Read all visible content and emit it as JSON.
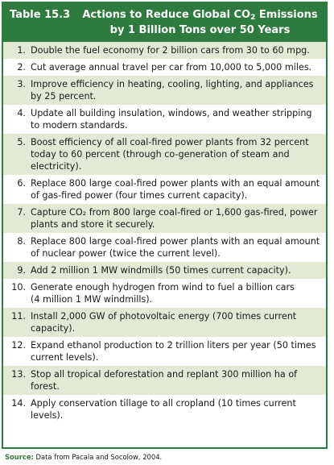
{
  "table": {
    "number": "Table 15.3",
    "title_line1": "Actions to Reduce Global CO",
    "title_sub": "2",
    "title_line1_end": " Emissions",
    "title_line2": "by 1 Billion Tons over 50 Years"
  },
  "rows": [
    {
      "num": "1.",
      "parts": [
        "Double the fuel economy for 2 billion cars from 30 to 60 mpg."
      ]
    },
    {
      "num": "2.",
      "parts": [
        "Cut average annual travel per car from 10,000 to 5,000 miles."
      ]
    },
    {
      "num": "3.",
      "parts": [
        "Improve efficiency in heating, cooling, lighting, and appliances",
        "by 25 percent."
      ]
    },
    {
      "num": "4.",
      "parts": [
        "Update all building insulation, windows, and weather stripping",
        "to modern standards."
      ]
    },
    {
      "num": "5.",
      "parts": [
        "Boost efficiency of all coal-fired power plants from 32 percent",
        "today to 60 percent (through co-generation of steam and",
        "electricity)."
      ]
    },
    {
      "num": "6.",
      "parts": [
        "Replace 800 large coal-fired power plants with an equal amount",
        "of gas-fired power (four times current capacity)."
      ]
    },
    {
      "num": "7.",
      "parts": [
        "Capture CO₂ from 800 large coal-fired or 1,600 gas-fired, power",
        "plants and store it securely."
      ]
    },
    {
      "num": "8.",
      "parts": [
        "Replace 800 large coal-fired power plants with an equal amount",
        "of nuclear power (twice the current level)."
      ]
    },
    {
      "num": "9.",
      "parts": [
        "Add 2 million 1 MW windmills (50 times current capacity)."
      ]
    },
    {
      "num": "10.",
      "parts": [
        "Generate enough hydrogen from wind to fuel a billion cars",
        "(4 million 1 MW windmills)."
      ]
    },
    {
      "num": "11.",
      "parts": [
        "Install 2,000 GW of photovoltaic energy (700 times current",
        "capacity)."
      ]
    },
    {
      "num": "12.",
      "parts": [
        "Expand ethanol production to 2 trillion liters per year (50 times",
        "current levels)."
      ]
    },
    {
      "num": "13.",
      "parts": [
        "Stop all tropical deforestation and replant 300 million ha of",
        "forest."
      ]
    },
    {
      "num": "14.",
      "parts": [
        "Apply conservation tillage to all cropland (10 times current",
        "levels)."
      ]
    }
  ],
  "source": {
    "label": "Source:",
    "text": " Data from Pacala and Socolow, 2004."
  },
  "colors": {
    "header_bg": "#2e7a3f",
    "stripe": "#e2ead3"
  }
}
